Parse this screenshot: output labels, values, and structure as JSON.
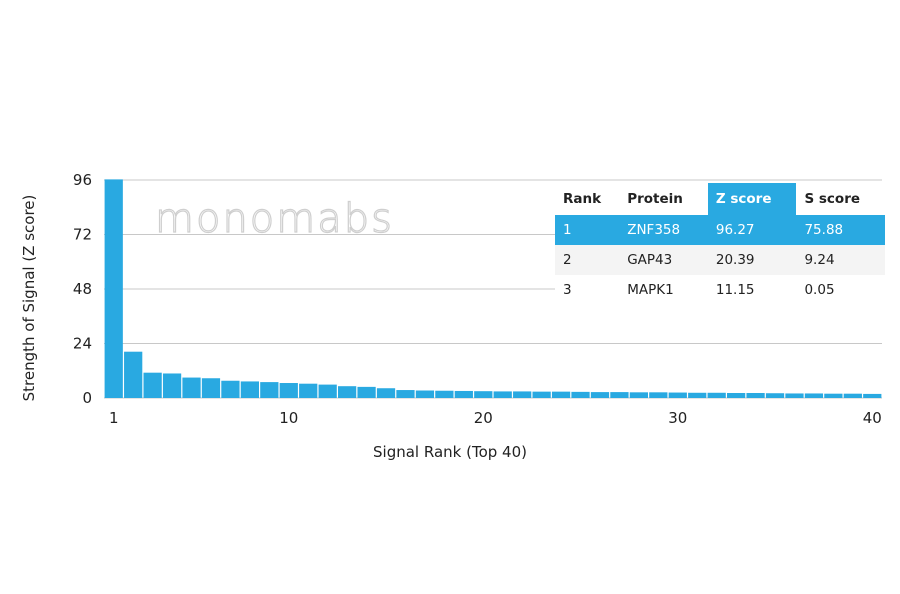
{
  "watermark": "monomabs",
  "table": {
    "headers": [
      "Rank",
      "Protein",
      "Z score",
      "S score"
    ],
    "rows": [
      [
        "1",
        "ZNF358",
        "96.27",
        "75.88"
      ],
      [
        "2",
        "GAP43",
        "20.39",
        "9.24"
      ],
      [
        "3",
        "MAPK1",
        "11.15",
        "0.05"
      ]
    ]
  },
  "chart_data": {
    "type": "bar",
    "xlabel": "Signal Rank (Top 40)",
    "ylabel": "Strength of Signal (Z score)",
    "ylim": [
      0,
      96
    ],
    "xlim": [
      1,
      40
    ],
    "yticks": [
      0,
      24,
      48,
      72,
      96
    ],
    "xticks": [
      1,
      10,
      20,
      30,
      40
    ],
    "grid": true,
    "colors": {
      "bar": "#29a9e1",
      "grid": "#c8c8c8"
    },
    "categories": [
      1,
      2,
      3,
      4,
      5,
      6,
      7,
      8,
      9,
      10,
      11,
      12,
      13,
      14,
      15,
      16,
      17,
      18,
      19,
      20,
      21,
      22,
      23,
      24,
      25,
      26,
      27,
      28,
      29,
      30,
      31,
      32,
      33,
      34,
      35,
      36,
      37,
      38,
      39,
      40
    ],
    "values": [
      96.27,
      20.39,
      11.15,
      10.8,
      9.0,
      8.7,
      7.6,
      7.3,
      7.0,
      6.6,
      6.3,
      5.9,
      5.2,
      4.9,
      4.3,
      3.5,
      3.3,
      3.2,
      3.1,
      3.0,
      2.9,
      2.9,
      2.8,
      2.8,
      2.7,
      2.6,
      2.6,
      2.5,
      2.5,
      2.4,
      2.3,
      2.3,
      2.2,
      2.2,
      2.1,
      2.0,
      2.0,
      1.9,
      1.9,
      1.8
    ]
  }
}
